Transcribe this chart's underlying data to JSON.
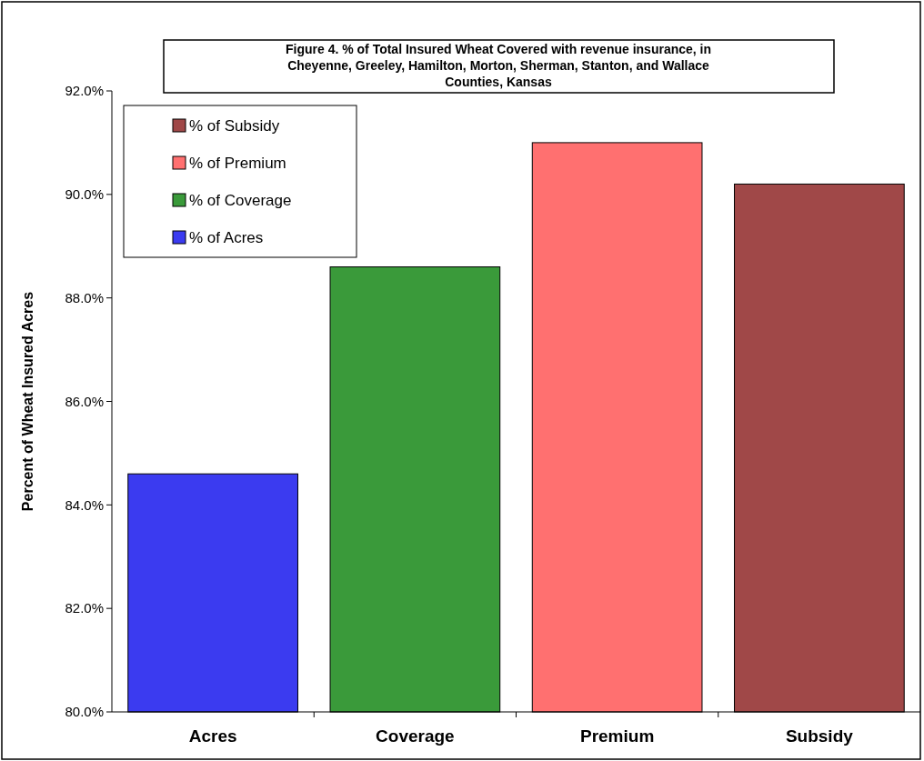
{
  "chart_data": {
    "type": "bar",
    "title": "Figure 4. % of Total Insured Wheat Covered with revenue insurance, in Cheyenne, Greeley, Hamilton, Morton, Sherman, Stanton, and Wallace Counties, Kansas",
    "ylabel": "Percent of Wheat Insured Acres",
    "categories": [
      "Acres",
      "Coverage",
      "Premium",
      "Subsidy"
    ],
    "series": [
      {
        "name": "% of Acres",
        "color": "#3b3bf0",
        "values": [
          84.6,
          null,
          null,
          null
        ]
      },
      {
        "name": "% of Coverage",
        "color": "#3a9a3a",
        "values": [
          null,
          88.6,
          null,
          null
        ]
      },
      {
        "name": "% of Premium",
        "color": "#ff7070",
        "values": [
          null,
          null,
          91.0,
          null
        ]
      },
      {
        "name": "% of Subsidy",
        "color": "#a04848",
        "values": [
          null,
          null,
          null,
          90.2
        ]
      }
    ],
    "ylim": [
      80,
      92
    ],
    "yticks": [
      {
        "value": 80,
        "label": "80.0%"
      },
      {
        "value": 82,
        "label": "82.0%"
      },
      {
        "value": 84,
        "label": "84.0%"
      },
      {
        "value": 86,
        "label": "86.0%"
      },
      {
        "value": 88,
        "label": "88.0%"
      },
      {
        "value": 90,
        "label": "90.0%"
      },
      {
        "value": 92,
        "label": "92.0%"
      }
    ],
    "legend": "top left"
  }
}
